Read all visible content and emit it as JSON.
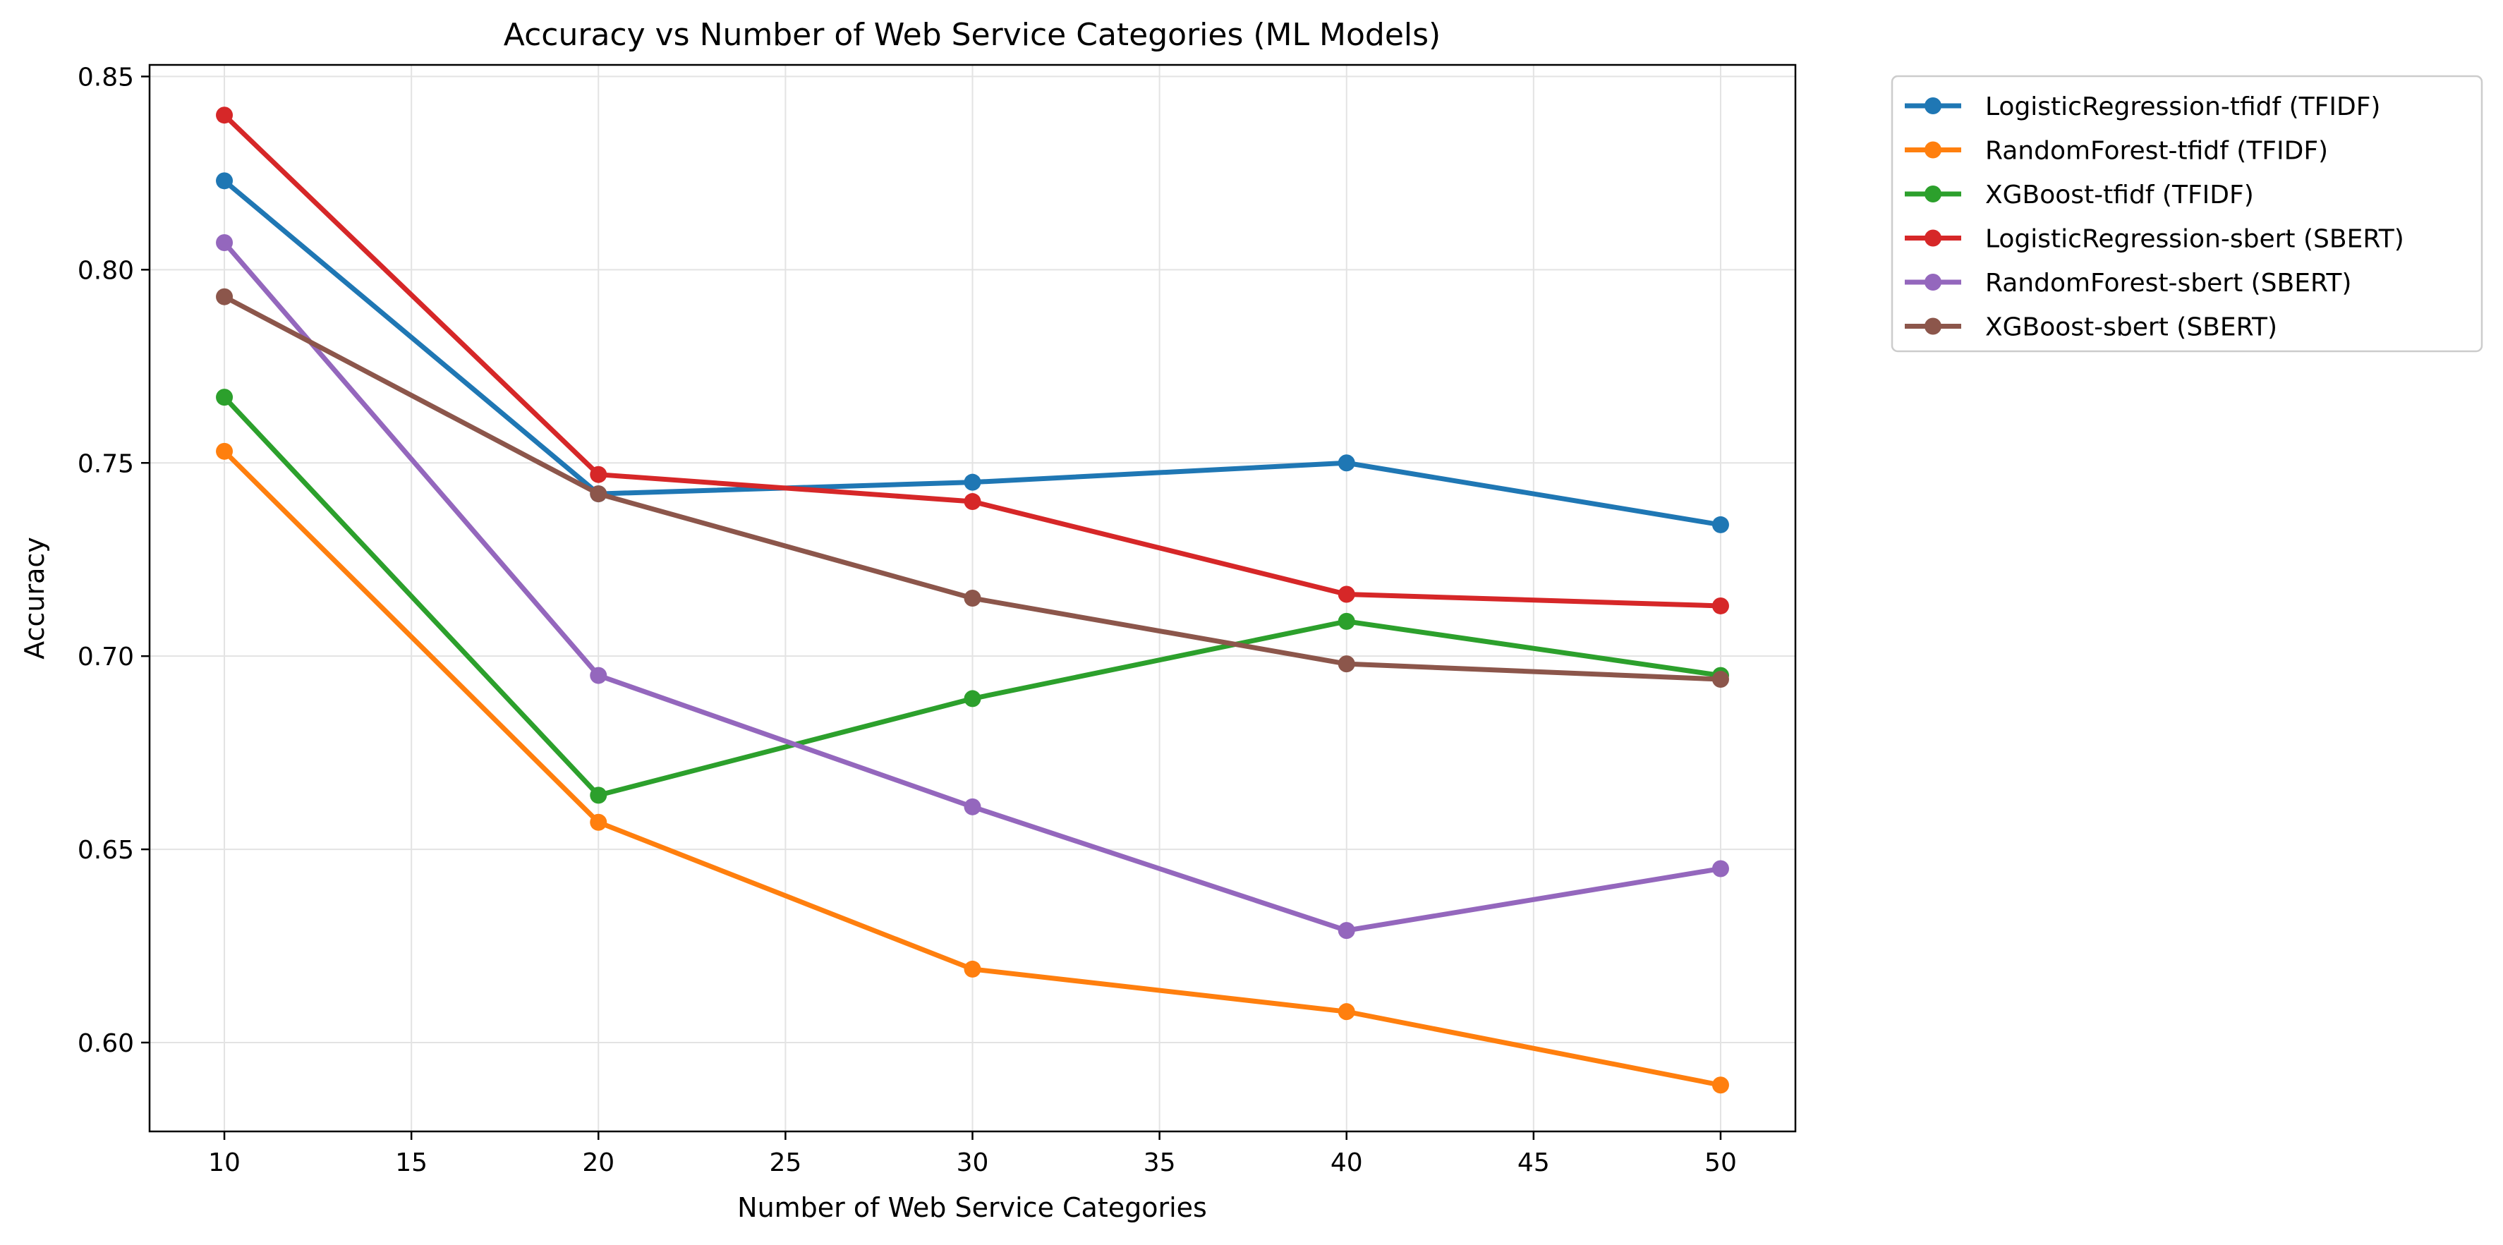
{
  "chart_data": {
    "type": "line",
    "title": "Accuracy vs Number of Web Service Categories (ML Models)",
    "xlabel": "Number of Web Service Categories",
    "ylabel": "Accuracy",
    "xlim": [
      8,
      52
    ],
    "ylim": [
      0.577,
      0.853
    ],
    "xticks": [
      10,
      15,
      20,
      25,
      30,
      35,
      40,
      45,
      50
    ],
    "yticks": [
      0.6,
      0.65,
      0.7,
      0.75,
      0.8,
      0.85
    ],
    "grid": true,
    "legend_position": "outside-top-right",
    "x": [
      10,
      20,
      30,
      40,
      50
    ],
    "series": [
      {
        "name": "LogisticRegression-tfidf (TFIDF)",
        "color": "#1f77b4",
        "values": [
          0.823,
          0.742,
          0.745,
          0.75,
          0.734
        ]
      },
      {
        "name": "RandomForest-tfidf (TFIDF)",
        "color": "#ff7f0e",
        "values": [
          0.753,
          0.657,
          0.619,
          0.608,
          0.589
        ]
      },
      {
        "name": "XGBoost-tfidf (TFIDF)",
        "color": "#2ca02c",
        "values": [
          0.767,
          0.664,
          0.689,
          0.709,
          0.695
        ]
      },
      {
        "name": "LogisticRegression-sbert (SBERT)",
        "color": "#d62728",
        "values": [
          0.84,
          0.747,
          0.74,
          0.716,
          0.713
        ]
      },
      {
        "name": "RandomForest-sbert (SBERT)",
        "color": "#9467bd",
        "values": [
          0.807,
          0.695,
          0.661,
          0.629,
          0.645
        ]
      },
      {
        "name": "XGBoost-sbert (SBERT)",
        "color": "#8c564b",
        "values": [
          0.793,
          0.742,
          0.715,
          0.698,
          0.694
        ]
      }
    ]
  }
}
